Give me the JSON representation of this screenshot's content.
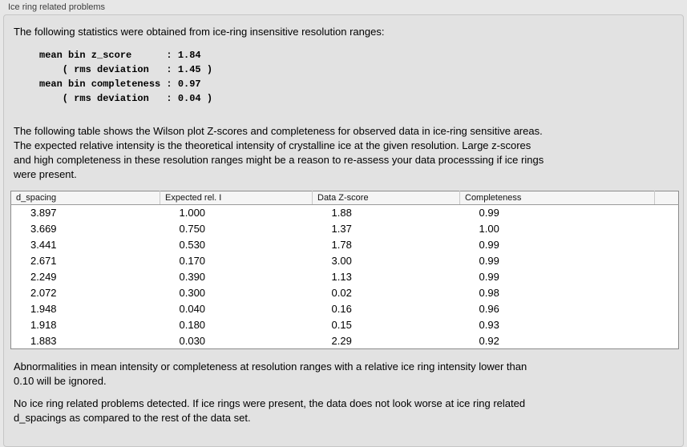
{
  "panel": {
    "title": "Ice ring related problems"
  },
  "intro": "The following statistics were obtained from ice-ring insensitive resolution ranges:",
  "stats": {
    "block": "mean bin z_score      : 1.84\n    ( rms deviation   : 1.45 )\nmean bin completeness : 0.97\n    ( rms deviation   : 0.04 )",
    "mean_bin_z_score": "1.84",
    "z_score_rms_deviation": "1.45",
    "mean_bin_completeness": "0.97",
    "completeness_rms_deviation": "0.04"
  },
  "description": {
    "lines": [
      "The following table shows the Wilson plot Z-scores and completeness for observed data in ice-ring sensitive areas.",
      "The expected relative intensity is the theoretical intensity of crystalline ice at the given resolution. Large z-scores",
      "and high completeness in these resolution ranges might be a reason to re-assess your data processsing if ice rings",
      "were present."
    ]
  },
  "table": {
    "headers": [
      "d_spacing",
      "Expected rel. I",
      "Data Z-score",
      "Completeness",
      ""
    ],
    "rows": [
      [
        "3.897",
        "1.000",
        "1.88",
        "0.99"
      ],
      [
        "3.669",
        "0.750",
        "1.37",
        "1.00"
      ],
      [
        "3.441",
        "0.530",
        "1.78",
        "0.99"
      ],
      [
        "2.671",
        "0.170",
        "3.00",
        "0.99"
      ],
      [
        "2.249",
        "0.390",
        "1.13",
        "0.99"
      ],
      [
        "2.072",
        "0.300",
        "0.02",
        "0.98"
      ],
      [
        "1.948",
        "0.040",
        "0.16",
        "0.96"
      ],
      [
        "1.918",
        "0.180",
        "0.15",
        "0.93"
      ],
      [
        "1.883",
        "0.030",
        "2.29",
        "0.92"
      ]
    ]
  },
  "note": {
    "lines": [
      "Abnormalities in mean intensity or completeness at resolution ranges with a relative ice ring intensity lower than",
      "0.10 will be ignored."
    ]
  },
  "conclusion": {
    "lines": [
      "No ice ring related problems detected. If ice rings were present, the data does not look worse at ice ring related",
      "d_spacings as compared to the rest of the data set."
    ]
  },
  "colors": {
    "page_background": "#e7e7e7",
    "panel_background": "#e2e2e2",
    "panel_border": "#c6c6c6",
    "table_background": "#ffffff",
    "table_border": "#8c8c8c",
    "table_header_background": "#f5f5f5",
    "text": "#000000",
    "label_text": "#3c3c3c"
  }
}
